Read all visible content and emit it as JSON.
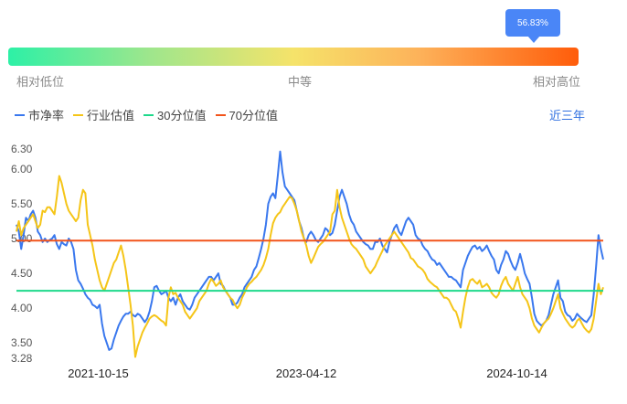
{
  "gauge": {
    "percentile_label": "56.83%",
    "percentile": 56.83,
    "low_label": "相对低位",
    "mid_label": "中等",
    "high_label": "相对高位"
  },
  "legend": {
    "period": "近三年"
  },
  "colors": {
    "pb": "#3a78ee",
    "industry": "#f5c518",
    "p30": "#1ed98b",
    "p70": "#f2541b",
    "tooltip": "#4a86f7"
  },
  "chart_data": {
    "type": "line",
    "ylim": [
      3.28,
      6.3
    ],
    "yticks": [
      "6.30",
      "6.00",
      "5.50",
      "5.00",
      "4.50",
      "4.00",
      "3.50",
      "3.28"
    ],
    "ytick_values": [
      6.3,
      6.0,
      5.5,
      5.0,
      4.5,
      4.0,
      3.5,
      3.28
    ],
    "xticks": [
      "2021-10-15",
      "2023-04-12",
      "2024-10-14"
    ],
    "x_start": "2021-03-15",
    "x_end": "2025-05-28",
    "lines": [
      {
        "name": "30分位值",
        "value": 4.25
      },
      {
        "name": "70分位值",
        "value": 4.97
      }
    ],
    "series": [
      {
        "name": "市净率",
        "values": [
          5.2,
          5.1,
          4.85,
          5.05,
          5.3,
          5.25,
          5.35,
          5.4,
          5.3,
          5.1,
          5.05,
          4.95,
          5.0,
          4.95,
          4.98,
          5.0,
          5.05,
          4.92,
          4.85,
          4.95,
          4.92,
          4.9,
          5.0,
          4.95,
          4.85,
          4.55,
          4.4,
          4.35,
          4.28,
          4.2,
          4.15,
          4.12,
          4.05,
          4.03,
          4.0,
          4.05,
          3.78,
          3.6,
          3.5,
          3.4,
          3.42,
          3.55,
          3.65,
          3.75,
          3.82,
          3.88,
          3.92,
          3.92,
          3.95,
          3.9,
          3.88,
          3.92,
          3.9,
          3.85,
          3.8,
          3.85,
          3.95,
          4.1,
          4.3,
          4.32,
          4.25,
          4.2,
          4.22,
          4.25,
          4.15,
          4.1,
          4.15,
          4.05,
          4.15,
          4.2,
          4.1,
          4.05,
          4.0,
          3.98,
          4.05,
          4.15,
          4.2,
          4.25,
          4.3,
          4.35,
          4.4,
          4.45,
          4.45,
          4.4,
          4.45,
          4.5,
          4.35,
          4.32,
          4.25,
          4.2,
          4.15,
          4.05,
          4.05,
          4.08,
          4.15,
          4.2,
          4.3,
          4.35,
          4.4,
          4.45,
          4.55,
          4.6,
          4.72,
          4.85,
          5.0,
          5.2,
          5.5,
          5.6,
          5.65,
          5.58,
          5.9,
          6.25,
          5.95,
          5.75,
          5.7,
          5.65,
          5.6,
          5.55,
          5.4,
          5.25,
          5.15,
          5.0,
          4.95,
          5.05,
          5.1,
          5.05,
          4.98,
          4.95,
          5.0,
          5.05,
          5.15,
          5.12,
          5.05,
          5.08,
          5.2,
          5.4,
          5.6,
          5.7,
          5.6,
          5.5,
          5.35,
          5.25,
          5.2,
          5.1,
          5.05,
          5.0,
          4.95,
          4.92,
          4.9,
          4.85,
          4.85,
          4.95,
          4.95,
          5.0,
          4.9,
          4.85,
          4.8,
          4.95,
          5.05,
          5.15,
          5.2,
          5.1,
          5.05,
          5.15,
          5.25,
          5.3,
          5.25,
          5.2,
          5.05,
          5.0,
          4.98,
          4.9,
          4.85,
          4.82,
          4.75,
          4.7,
          4.68,
          4.62,
          4.65,
          4.6,
          4.55,
          4.5,
          4.45,
          4.45,
          4.42,
          4.4,
          4.35,
          4.3,
          4.55,
          4.65,
          4.75,
          4.82,
          4.88,
          4.9,
          4.85,
          4.88,
          4.82,
          4.85,
          4.9,
          4.82,
          4.75,
          4.7,
          4.55,
          4.5,
          4.62,
          4.7,
          4.82,
          4.78,
          4.68,
          4.6,
          4.55,
          4.65,
          4.78,
          4.65,
          4.5,
          4.42,
          4.35,
          4.15,
          3.92,
          3.82,
          3.78,
          3.75,
          3.78,
          3.82,
          3.9,
          4.05,
          4.2,
          4.3,
          4.4,
          4.15,
          4.1,
          3.95,
          3.9,
          3.88,
          3.82,
          3.85,
          3.92,
          3.88,
          3.85,
          3.82,
          3.8,
          3.85,
          3.9,
          4.2,
          4.6,
          5.05,
          4.85,
          4.7
        ]
      },
      {
        "name": "行业估值",
        "values": [
          5.1,
          5.25,
          5.05,
          5.15,
          5.2,
          5.25,
          5.3,
          5.35,
          5.25,
          5.15,
          5.2,
          5.4,
          5.38,
          5.45,
          5.45,
          5.4,
          5.35,
          5.6,
          5.9,
          5.8,
          5.65,
          5.5,
          5.4,
          5.35,
          5.3,
          5.25,
          5.3,
          5.55,
          5.7,
          5.65,
          5.2,
          5.05,
          4.9,
          4.7,
          4.55,
          4.4,
          4.3,
          4.25,
          4.35,
          4.45,
          4.55,
          4.65,
          4.7,
          4.8,
          4.9,
          4.75,
          4.55,
          4.3,
          4.05,
          3.75,
          3.3,
          3.45,
          3.55,
          3.65,
          3.72,
          3.78,
          3.85,
          3.88,
          3.9,
          3.88,
          3.85,
          3.82,
          3.8,
          3.75,
          4.15,
          4.3,
          4.2,
          4.22,
          4.15,
          4.1,
          4.05,
          3.95,
          3.9,
          3.85,
          3.9,
          3.95,
          4.0,
          4.1,
          4.15,
          4.2,
          4.25,
          4.35,
          4.42,
          4.38,
          4.32,
          4.35,
          4.4,
          4.3,
          4.25,
          4.2,
          4.15,
          4.12,
          4.05,
          4.0,
          4.05,
          4.15,
          4.22,
          4.3,
          4.35,
          4.38,
          4.42,
          4.45,
          4.5,
          4.55,
          4.62,
          4.72,
          4.85,
          5.05,
          5.22,
          5.3,
          5.35,
          5.38,
          5.45,
          5.5,
          5.55,
          5.6,
          5.58,
          5.5,
          5.4,
          5.25,
          5.1,
          5.0,
          4.9,
          4.75,
          4.65,
          4.72,
          4.8,
          4.88,
          4.92,
          4.95,
          5.0,
          5.05,
          5.1,
          5.35,
          5.4,
          5.7,
          5.45,
          5.3,
          5.2,
          5.1,
          5.0,
          4.92,
          4.88,
          4.85,
          4.8,
          4.75,
          4.7,
          4.6,
          4.55,
          4.5,
          4.55,
          4.6,
          4.68,
          4.75,
          4.82,
          4.9,
          4.95,
          5.0,
          5.05,
          5.1,
          5.05,
          5.0,
          4.95,
          4.9,
          4.85,
          4.8,
          4.72,
          4.7,
          4.65,
          4.6,
          4.58,
          4.55,
          4.5,
          4.42,
          4.38,
          4.35,
          4.32,
          4.3,
          4.25,
          4.2,
          4.15,
          4.15,
          4.12,
          4.05,
          3.98,
          3.95,
          3.85,
          3.72,
          3.95,
          4.15,
          4.3,
          4.4,
          4.42,
          4.38,
          4.35,
          4.4,
          4.3,
          4.32,
          4.35,
          4.3,
          4.22,
          4.18,
          4.15,
          4.2,
          4.32,
          4.4,
          4.45,
          4.35,
          4.3,
          4.25,
          4.35,
          4.45,
          4.3,
          4.2,
          4.15,
          4.1,
          4.0,
          3.85,
          3.75,
          3.7,
          3.65,
          3.72,
          3.78,
          3.82,
          3.85,
          3.92,
          4.0,
          4.1,
          4.2,
          4.0,
          3.92,
          3.85,
          3.8,
          3.75,
          3.72,
          3.75,
          3.82,
          3.85,
          3.78,
          3.72,
          3.68,
          3.65,
          3.7,
          3.85,
          4.1,
          4.35,
          4.2,
          4.3
        ]
      }
    ]
  }
}
